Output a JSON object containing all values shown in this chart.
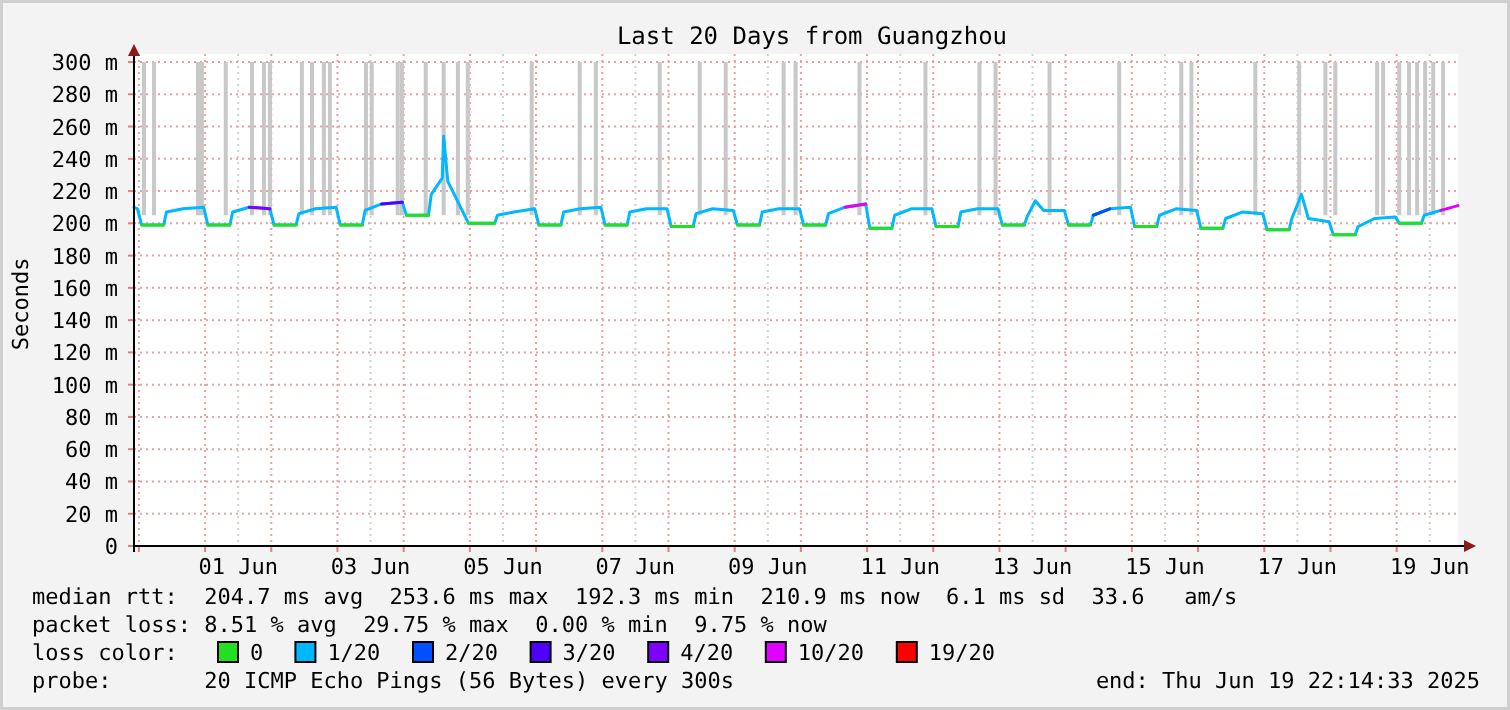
{
  "chart_data": {
    "type": "line",
    "title": "Last 20 Days from Guangzhou",
    "ylabel": "Seconds",
    "legend_title": "loss color:",
    "legend": "bottom",
    "grid": true,
    "marker": "none",
    "line_style": "solid",
    "xlim": [
      "2025-05-30T22:14",
      "2025-06-19T22:14"
    ],
    "xticks": [
      {
        "value": "2025-05-31T00:00",
        "label": null
      },
      {
        "value": "2025-06-01T00:00",
        "label": null
      },
      {
        "value": "2025-06-01T12:00",
        "label": "01 Jun"
      },
      {
        "value": "2025-06-02T00:00",
        "label": null
      },
      {
        "value": "2025-06-03T00:00",
        "label": null
      },
      {
        "value": "2025-06-03T12:00",
        "label": "03 Jun"
      },
      {
        "value": "2025-06-04T00:00",
        "label": null
      },
      {
        "value": "2025-06-05T00:00",
        "label": null
      },
      {
        "value": "2025-06-05T12:00",
        "label": "05 Jun"
      },
      {
        "value": "2025-06-06T00:00",
        "label": null
      },
      {
        "value": "2025-06-07T00:00",
        "label": null
      },
      {
        "value": "2025-06-07T12:00",
        "label": "07 Jun"
      },
      {
        "value": "2025-06-08T00:00",
        "label": null
      },
      {
        "value": "2025-06-09T00:00",
        "label": null
      },
      {
        "value": "2025-06-09T12:00",
        "label": "09 Jun"
      },
      {
        "value": "2025-06-10T00:00",
        "label": null
      },
      {
        "value": "2025-06-11T00:00",
        "label": null
      },
      {
        "value": "2025-06-11T12:00",
        "label": "11 Jun"
      },
      {
        "value": "2025-06-12T00:00",
        "label": null
      },
      {
        "value": "2025-06-13T00:00",
        "label": null
      },
      {
        "value": "2025-06-13T12:00",
        "label": "13 Jun"
      },
      {
        "value": "2025-06-14T00:00",
        "label": null
      },
      {
        "value": "2025-06-15T00:00",
        "label": null
      },
      {
        "value": "2025-06-15T12:00",
        "label": "15 Jun"
      },
      {
        "value": "2025-06-16T00:00",
        "label": null
      },
      {
        "value": "2025-06-17T00:00",
        "label": null
      },
      {
        "value": "2025-06-17T12:00",
        "label": "17 Jun"
      },
      {
        "value": "2025-06-18T00:00",
        "label": null
      },
      {
        "value": "2025-06-19T00:00",
        "label": null
      },
      {
        "value": "2025-06-19T12:00",
        "label": "19 Jun"
      }
    ],
    "ylim": [
      0,
      300
    ],
    "yticks": [
      0,
      {
        "value": 20,
        "label": "20 m"
      },
      {
        "value": 40,
        "label": "40 m"
      },
      {
        "value": 60,
        "label": "60 m"
      },
      {
        "value": 80,
        "label": "80 m"
      },
      {
        "value": 100,
        "label": "100 m"
      },
      {
        "value": 120,
        "label": "120 m"
      },
      {
        "value": 140,
        "label": "140 m"
      },
      {
        "value": 160,
        "label": "160 m"
      },
      {
        "value": 180,
        "label": "180 m"
      },
      {
        "value": 200,
        "label": "200 m"
      },
      {
        "value": 220,
        "label": "220 m"
      },
      {
        "value": 240,
        "label": "240 m"
      },
      {
        "value": 260,
        "label": "260 m"
      },
      {
        "value": 280,
        "label": "280 m"
      },
      {
        "value": 300,
        "label": "300 m"
      }
    ],
    "annotations": [
      "median rtt:  204.7 ms avg  253.6 ms max  192.3 ms min  210.9 ms now  6.1 ms sd  33.6   am/s",
      "packet loss: 8.51 % avg  29.75 % max  0.00 % min  9.75 % now",
      "probe:       20 ICMP Echo Pings (56 Bytes) every 300s",
      "end: Thu Jun 19 22:14:33 2025"
    ],
    "series": [
      {
        "type": "bar",
        "color": "#c8c8c8",
        "x": [
          "2025-05-31T01:50",
          "2025-05-31T05:30",
          "2025-05-31T21:25",
          "2025-05-31T22:50",
          "2025-06-01T07:30",
          "2025-06-01T17:00",
          "2025-06-01T21:20",
          "2025-06-01T23:30",
          "2025-06-02T11:05",
          "2025-06-02T14:45",
          "2025-06-02T19:05",
          "2025-06-02T21:15",
          "2025-06-03T10:20",
          "2025-06-03T12:25",
          "2025-06-03T21:50",
          "2025-06-03T23:20",
          "2025-06-04T08:00",
          "2025-06-04T14:30",
          "2025-06-04T19:40",
          "2025-06-04T23:15",
          "2025-06-05T22:25",
          "2025-06-06T15:50",
          "2025-06-06T21:40",
          "2025-06-07T20:50",
          "2025-06-08T11:20",
          "2025-06-08T20:45",
          "2025-06-09T17:45",
          "2025-06-09T22:05",
          "2025-06-10T21:15",
          "2025-06-11T21:10",
          "2025-06-12T16:45",
          "2025-06-12T22:35",
          "2025-06-13T18:10",
          "2025-06-14T19:25",
          "2025-06-15T17:55",
          "2025-06-15T21:35",
          "2025-06-16T20:45",
          "2025-06-17T12:40",
          "2025-06-17T22:10",
          "2025-06-18T01:45",
          "2025-06-18T16:55",
          "2025-06-18T19:05",
          "2025-06-19T00:55",
          "2025-06-19T04:30",
          "2025-06-19T07:25",
          "2025-06-19T10:20",
          "2025-06-19T13:15",
          "2025-06-19T16:50"
        ],
        "base": [
          205,
          205,
          205,
          205,
          205,
          205,
          205,
          205,
          205,
          205,
          205,
          205,
          205,
          205,
          205,
          205,
          205,
          205,
          205,
          205,
          205,
          205,
          205,
          205,
          205,
          205,
          205,
          205,
          205,
          205,
          205,
          205,
          205,
          205,
          205,
          205,
          205,
          205,
          205,
          205,
          205,
          205,
          205,
          205,
          205,
          205,
          205,
          205
        ],
        "values": [
          95,
          95,
          95,
          95,
          95,
          95,
          95,
          95,
          95,
          95,
          95,
          95,
          95,
          95,
          95,
          95,
          95,
          95,
          95,
          95,
          95,
          95,
          95,
          95,
          95,
          95,
          95,
          95,
          95,
          95,
          95,
          95,
          95,
          95,
          95,
          95,
          95,
          95,
          95,
          95,
          95,
          95,
          95,
          95,
          95,
          95,
          95,
          95
        ]
      },
      {
        "name": "0",
        "color": "#20e020",
        "x": [
          "2025-05-31T01:00",
          "2025-05-31T09:00",
          "2025-05-31T09:30",
          "2025-06-01T01:00",
          "2025-06-01T09:00",
          "2025-06-01T09:30",
          "2025-06-02T01:00",
          "2025-06-02T09:00",
          "2025-06-02T09:30",
          "2025-06-03T01:00",
          "2025-06-03T09:00",
          "2025-06-03T09:30",
          "2025-06-04T01:00",
          "2025-06-04T09:00",
          "2025-06-04T09:30",
          "2025-06-04T23:30",
          "2025-06-05T01:00",
          "2025-06-05T09:00",
          "2025-06-05T09:30",
          "2025-06-06T01:00",
          "2025-06-06T09:00",
          "2025-06-06T09:30",
          "2025-06-07T01:00",
          "2025-06-07T09:00",
          "2025-06-07T09:30",
          "2025-06-08T01:00",
          "2025-06-08T09:00",
          "2025-06-08T09:30",
          "2025-06-09T01:00",
          "2025-06-09T09:00",
          "2025-06-09T09:30",
          "2025-06-10T01:00",
          "2025-06-10T09:00",
          "2025-06-10T09:30",
          "2025-06-11T01:00",
          "2025-06-11T09:00",
          "2025-06-11T09:30",
          "2025-06-12T01:00",
          "2025-06-12T09:00",
          "2025-06-12T09:30",
          "2025-06-13T01:00",
          "2025-06-13T09:00",
          "2025-06-13T09:30",
          "2025-06-14T01:00",
          "2025-06-14T09:00",
          "2025-06-14T09:30",
          "2025-06-15T01:00",
          "2025-06-15T09:00",
          "2025-06-15T09:30",
          "2025-06-16T01:00",
          "2025-06-16T09:00",
          "2025-06-16T09:30",
          "2025-06-17T01:00",
          "2025-06-17T09:00",
          "2025-06-17T09:30",
          "2025-06-18T01:00",
          "2025-06-18T09:00",
          "2025-06-18T09:30",
          "2025-06-19T01:00",
          "2025-06-19T09:00"
        ],
        "values": [
          199,
          199,
          null,
          199,
          199,
          null,
          199,
          199,
          null,
          199,
          199,
          null,
          205,
          205,
          null,
          200,
          200,
          200,
          null,
          199,
          199,
          null,
          199,
          199,
          null,
          198,
          198,
          null,
          199,
          199,
          null,
          199,
          199,
          null,
          197,
          197,
          null,
          198,
          198,
          null,
          199,
          199,
          null,
          199,
          199,
          null,
          198,
          198,
          null,
          197,
          197,
          null,
          196,
          196,
          null,
          193,
          193,
          null,
          200,
          200
        ]
      },
      {
        "name": "1/20",
        "color": "#00b8ff",
        "x": [
          "2025-05-30T22:14",
          "2025-05-30T23:30",
          "2025-05-31T01:00",
          "2025-05-31T09:00",
          "2025-05-31T10:00",
          "2025-05-31T16:00",
          "2025-05-31T23:30",
          "2025-06-01T01:00",
          "2025-06-01T09:00",
          "2025-06-01T10:00",
          "2025-06-01T16:00",
          "2025-06-01T23:30",
          "2025-06-02T01:00",
          "2025-06-02T09:00",
          "2025-06-02T10:00",
          "2025-06-02T16:00",
          "2025-06-02T23:30",
          "2025-06-03T01:00",
          "2025-06-03T09:00",
          "2025-06-03T10:00",
          "2025-06-03T16:00",
          "2025-06-03T23:30",
          "2025-06-04T01:00",
          "2025-06-04T09:00",
          "2025-06-04T10:00",
          "2025-06-04T14:00",
          "2025-06-04T14:30",
          "2025-06-04T16:00",
          "2025-06-04T23:30",
          "2025-06-05T01:00",
          "2025-06-05T09:00",
          "2025-06-05T10:00",
          "2025-06-05T16:00",
          "2025-06-05T23:30",
          "2025-06-06T01:00",
          "2025-06-06T09:00",
          "2025-06-06T10:00",
          "2025-06-06T16:00",
          "2025-06-06T23:30",
          "2025-06-07T01:00",
          "2025-06-07T09:00",
          "2025-06-07T10:00",
          "2025-06-07T16:00",
          "2025-06-07T23:30",
          "2025-06-08T01:00",
          "2025-06-08T09:00",
          "2025-06-08T10:00",
          "2025-06-08T16:00",
          "2025-06-08T23:30",
          "2025-06-09T01:00",
          "2025-06-09T09:00",
          "2025-06-09T10:00",
          "2025-06-09T16:00",
          "2025-06-09T23:30",
          "2025-06-10T01:00",
          "2025-06-10T09:00",
          "2025-06-10T10:00",
          "2025-06-10T16:00",
          "2025-06-10T23:30",
          "2025-06-11T01:00",
          "2025-06-11T09:00",
          "2025-06-11T10:00",
          "2025-06-11T16:00",
          "2025-06-11T23:30",
          "2025-06-12T01:00",
          "2025-06-12T09:00",
          "2025-06-12T10:00",
          "2025-06-12T16:00",
          "2025-06-12T23:30",
          "2025-06-13T01:00",
          "2025-06-13T09:00",
          "2025-06-13T10:00",
          "2025-06-13T13:00",
          "2025-06-13T16:00",
          "2025-06-13T23:30",
          "2025-06-14T01:00",
          "2025-06-14T09:00",
          "2025-06-14T10:00",
          "2025-06-14T16:00",
          "2025-06-14T23:30",
          "2025-06-15T01:00",
          "2025-06-15T09:00",
          "2025-06-15T10:00",
          "2025-06-15T16:00",
          "2025-06-15T23:30",
          "2025-06-16T01:00",
          "2025-06-16T09:00",
          "2025-06-16T10:00",
          "2025-06-16T16:00",
          "2025-06-16T23:30",
          "2025-06-17T01:00",
          "2025-06-17T09:00",
          "2025-06-17T10:00",
          "2025-06-17T13:30",
          "2025-06-17T16:00",
          "2025-06-17T23:30",
          "2025-06-18T01:00",
          "2025-06-18T09:00",
          "2025-06-18T10:00",
          "2025-06-18T16:00",
          "2025-06-18T23:30",
          "2025-06-19T01:00",
          "2025-06-19T09:00",
          "2025-06-19T10:00",
          "2025-06-19T16:00"
        ],
        "values": [
          210,
          209,
          199,
          199,
          207,
          209,
          210,
          199,
          199,
          207,
          210,
          209,
          199,
          199,
          206,
          209,
          210,
          199,
          199,
          208,
          212,
          213,
          205,
          205,
          218,
          228,
          254,
          226,
          200,
          200,
          200,
          205,
          207,
          209,
          199,
          199,
          207,
          209,
          210,
          199,
          199,
          207,
          209,
          209,
          198,
          198,
          206,
          209,
          208,
          199,
          199,
          207,
          209,
          209,
          199,
          199,
          206,
          210,
          212,
          197,
          197,
          205,
          209,
          209,
          198,
          198,
          207,
          209,
          209,
          199,
          199,
          204,
          214,
          208,
          208,
          199,
          199,
          205,
          209,
          210,
          198,
          198,
          205,
          209,
          208,
          197,
          197,
          203,
          207,
          206,
          196,
          196,
          203,
          218,
          203,
          201,
          193,
          193,
          198,
          203,
          204,
          200,
          200,
          205,
          208
        ]
      },
      {
        "name": "2/20",
        "color": "#0050ff",
        "x": [
          "2025-06-14T10:00",
          "2025-06-14T16:00"
        ],
        "values": [
          205,
          209
        ]
      },
      {
        "name": "3/20",
        "color": "#5000ff",
        "x": [
          "2025-06-03T16:00",
          "2025-06-03T23:30"
        ],
        "values": [
          212,
          213
        ]
      },
      {
        "name": "4/20",
        "color": "#8000ff",
        "x": [
          "2025-06-01T16:00",
          "2025-06-01T23:30"
        ],
        "values": [
          210,
          209
        ]
      },
      {
        "name": "10/20",
        "color": "#e000ff",
        "x": [
          "2025-06-10T16:00",
          "2025-06-10T23:30",
          "2025-06-12T00:00",
          "2025-06-19T16:00",
          "2025-06-19T22:14"
        ],
        "values": [
          210,
          212,
          null,
          208,
          211
        ]
      },
      {
        "name": "19/20",
        "color": "#ff0000"
      }
    ]
  }
}
